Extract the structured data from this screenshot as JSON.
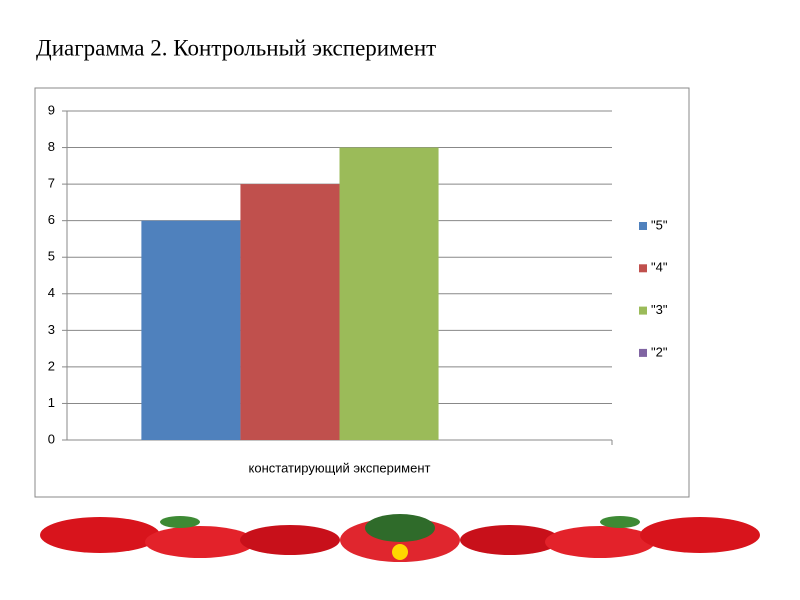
{
  "chart_data": {
    "type": "bar",
    "title": "Диаграмма 2. Контрольный эксперимент",
    "categories": [
      "констатирующий эксперимент"
    ],
    "series": [
      {
        "name": "\"5\"",
        "color": "#4f81bd",
        "values": [
          6
        ]
      },
      {
        "name": "\"4\"",
        "color": "#c0504d",
        "values": [
          7
        ]
      },
      {
        "name": "\"3\"",
        "color": "#9bbb59",
        "values": [
          8
        ]
      },
      {
        "name": "\"2\"",
        "color": "#8064a2",
        "values": [
          0
        ]
      }
    ],
    "ylim": [
      0,
      9
    ],
    "yticks": [
      0,
      1,
      2,
      3,
      4,
      5,
      6,
      7,
      8,
      9
    ],
    "grid": true,
    "legend": "right"
  }
}
